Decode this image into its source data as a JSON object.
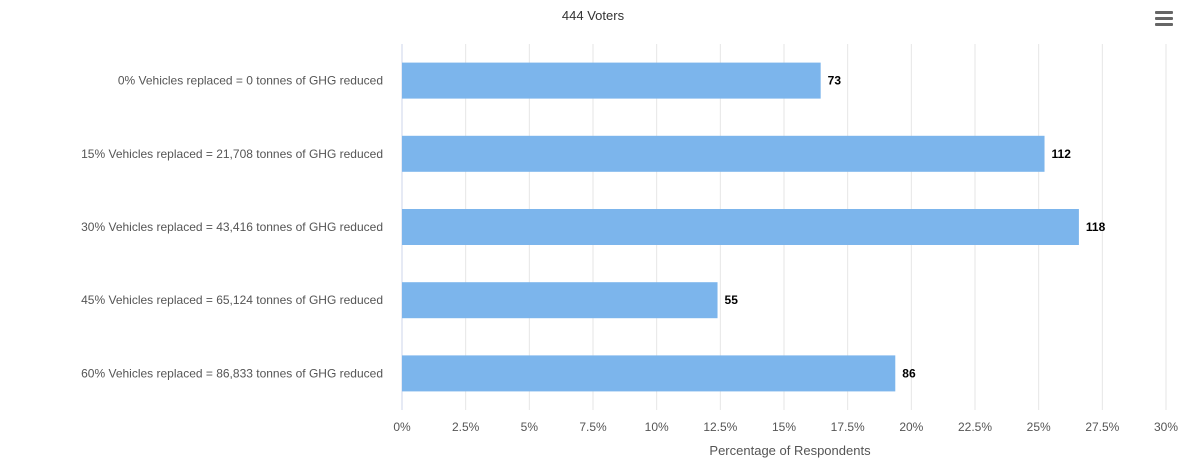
{
  "chart_data": {
    "type": "bar",
    "orientation": "horizontal",
    "title": "444 Voters",
    "categories": [
      "0% Vehicles replaced = 0 tonnes of GHG reduced",
      "15% Vehicles replaced = 21,708 tonnes of GHG reduced",
      "30% Vehicles replaced = 43,416 tonnes of GHG reduced",
      "45% Vehicles replaced = 65,124 tonnes of GHG reduced",
      "60% Vehicles replaced = 86,833 tonnes of GHG reduced"
    ],
    "values": [
      16.44,
      25.23,
      26.58,
      12.39,
      19.37
    ],
    "data_labels": [
      "73",
      "112",
      "118",
      "55",
      "86"
    ],
    "xlabel": "Percentage of Respondents",
    "ylabel": "",
    "xlim": [
      0,
      30
    ],
    "x_ticks": [
      "0%",
      "2.5%",
      "5%",
      "7.5%",
      "10%",
      "12.5%",
      "15%",
      "17.5%",
      "20%",
      "22.5%",
      "25%",
      "27.5%",
      "30%"
    ],
    "grid": true,
    "bar_color": "#7cb5ec"
  },
  "toolbar": {
    "menu_icon": "hamburger-menu-icon"
  }
}
